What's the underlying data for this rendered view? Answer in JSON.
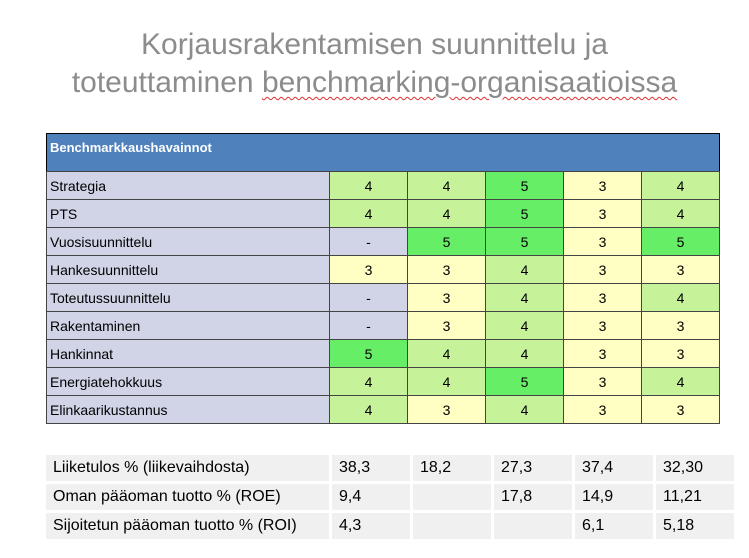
{
  "title": {
    "line1": "Korjausrakentamisen suunnittelu ja",
    "line2_plain": "toteuttaminen ",
    "line2_underlined": "benchmarking-organisaatioissa"
  },
  "benchmark": {
    "header": "Benchmarkkaushavainnot",
    "rows": [
      {
        "label": "Strategia",
        "values": [
          "4",
          "4",
          "5",
          "3",
          "4"
        ]
      },
      {
        "label": "PTS",
        "values": [
          "4",
          "4",
          "5",
          "3",
          "4"
        ]
      },
      {
        "label": "Vuosisuunnittelu",
        "values": [
          "-",
          "5",
          "5",
          "3",
          "5"
        ]
      },
      {
        "label": "Hankesuunnittelu",
        "values": [
          "3",
          "3",
          "4",
          "3",
          "3"
        ]
      },
      {
        "label": "Toteutussuunnittelu",
        "values": [
          "-",
          "3",
          "4",
          "3",
          "4"
        ]
      },
      {
        "label": "Rakentaminen",
        "values": [
          "-",
          "3",
          "4",
          "3",
          "3"
        ]
      },
      {
        "label": "Hankinnat",
        "values": [
          "5",
          "4",
          "4",
          "3",
          "3"
        ]
      },
      {
        "label": "Energiatehokkuus",
        "values": [
          "4",
          "4",
          "5",
          "3",
          "4"
        ]
      },
      {
        "label": "Elinkaarikustannus",
        "values": [
          "4",
          "3",
          "4",
          "3",
          "3"
        ]
      }
    ],
    "colors": {
      "3": "#ffffc4",
      "4": "#c6f29a",
      "5": "#66ee66",
      "-": "#d0d4e6"
    }
  },
  "financials": {
    "rows": [
      {
        "label": "Liiketulos % (liikevaihdosta)",
        "values": [
          "38,3",
          "18,2",
          "27,3",
          "37,4",
          "32,30"
        ]
      },
      {
        "label": "Oman pääoman tuotto % (ROE)",
        "values": [
          "9,4",
          "",
          "17,8",
          "14,9",
          "11,21"
        ]
      },
      {
        "label": "Sijoitetun pääoman tuotto % (ROI)",
        "values": [
          "4,3",
          "",
          "",
          "6,1",
          "5,18"
        ]
      }
    ]
  }
}
